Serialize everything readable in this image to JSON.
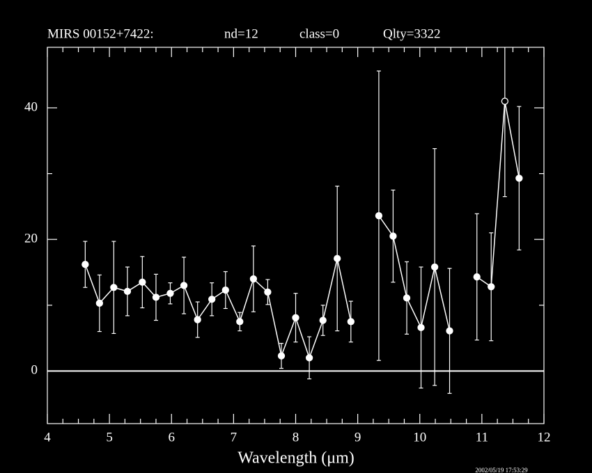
{
  "chart_data": {
    "type": "errorbar",
    "title": [
      "MIRS 00152+7422:",
      "nd=12",
      "class=0",
      "Qlty=3322"
    ],
    "xlabel": "Wavelength (μm)",
    "timestamp": "2002/05/19 17:53:29",
    "x": [
      4.61,
      4.84,
      5.07,
      5.29,
      5.53,
      5.75,
      5.98,
      6.2,
      6.42,
      6.65,
      6.87,
      7.1,
      7.32,
      7.55,
      7.77,
      8.0,
      8.22,
      8.44,
      8.67,
      8.89,
      null,
      9.34,
      9.57,
      9.79,
      10.02,
      10.24,
      10.48,
      null,
      10.92,
      11.15,
      11.37,
      11.6
    ],
    "values": [
      16.2,
      10.3,
      12.7,
      12.1,
      13.5,
      11.2,
      11.8,
      13.0,
      7.8,
      10.9,
      12.3,
      7.5,
      14.0,
      12.0,
      2.3,
      8.1,
      2.0,
      7.7,
      17.1,
      7.5,
      null,
      23.6,
      20.5,
      11.1,
      6.6,
      15.8,
      6.1,
      null,
      14.3,
      12.8,
      41.0,
      29.3
    ],
    "errors": [
      3.5,
      4.3,
      7.0,
      3.7,
      3.9,
      3.5,
      1.6,
      4.3,
      2.7,
      2.5,
      2.8,
      1.4,
      5.0,
      1.9,
      1.9,
      3.7,
      3.2,
      2.3,
      11.0,
      3.1,
      null,
      22.0,
      7.0,
      5.5,
      9.2,
      18.0,
      9.5,
      null,
      9.6,
      8.2,
      14.5,
      10.9
    ],
    "markers": [
      "filled",
      "filled",
      "filled",
      "filled",
      "filled",
      "filled",
      "filled",
      "filled",
      "filled",
      "filled",
      "filled",
      "filled",
      "filled",
      "filled",
      "filled",
      "filled",
      "filled",
      "filled",
      "filled",
      "filled",
      null,
      "filled",
      "filled",
      "filled",
      "filled",
      "filled",
      "filled",
      null,
      "filled",
      "filled",
      "open",
      "filled"
    ],
    "color": "#ffffff",
    "xlim": [
      4,
      12
    ],
    "ylim": [
      -8,
      49.2
    ],
    "xticks": [
      4,
      5,
      6,
      7,
      8,
      9,
      10,
      11,
      12
    ],
    "xticks_minor": [
      4.25,
      4.5,
      4.75,
      5.25,
      5.5,
      5.75,
      6.25,
      6.5,
      6.75,
      7.25,
      7.5,
      7.75,
      8.25,
      8.5,
      8.75,
      9.25,
      9.5,
      9.75,
      10.25,
      10.5,
      10.75,
      11.25,
      11.5,
      11.75
    ],
    "yticks": [
      0,
      20,
      40
    ],
    "yticks_minor": [
      10,
      30
    ],
    "zero_line": true
  }
}
